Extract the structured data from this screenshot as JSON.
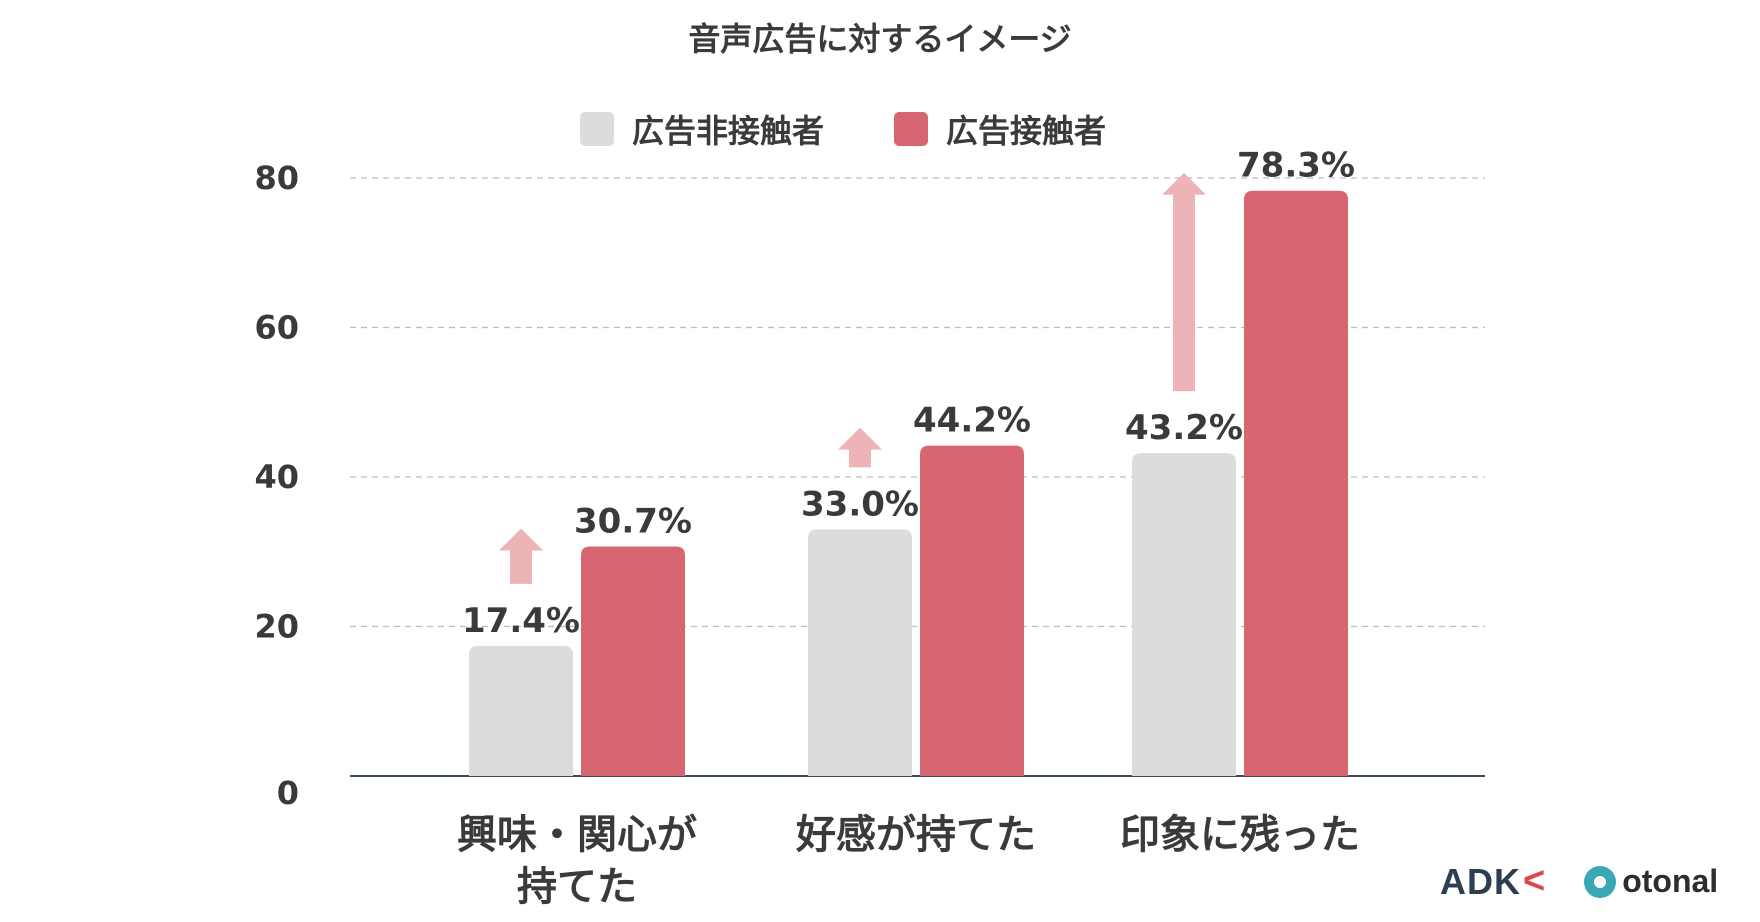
{
  "chart_data": {
    "type": "bar",
    "title": "音声広告に対するイメージ",
    "categories": [
      [
        "興味・関心が",
        "持てた"
      ],
      [
        "好感が持てた"
      ],
      [
        "印象に残った"
      ]
    ],
    "series": [
      {
        "name": "広告非接触者",
        "values": [
          17.4,
          33.0,
          43.2
        ],
        "labels": [
          "17.4%",
          "33.0%",
          "43.2%"
        ],
        "color": "#dcdcdc"
      },
      {
        "name": "広告接触者",
        "values": [
          30.7,
          44.2,
          78.3
        ],
        "labels": [
          "30.7%",
          "44.2%",
          "78.3%"
        ],
        "color": "#d86671"
      }
    ],
    "ylim": [
      0,
      80
    ],
    "yticks": [
      0,
      20,
      40,
      60,
      80
    ],
    "grid": true,
    "legend_position": "top",
    "arrow_color": "#ecb4b7"
  },
  "logos": {
    "adk": "ADK",
    "otonal": "otonal"
  }
}
